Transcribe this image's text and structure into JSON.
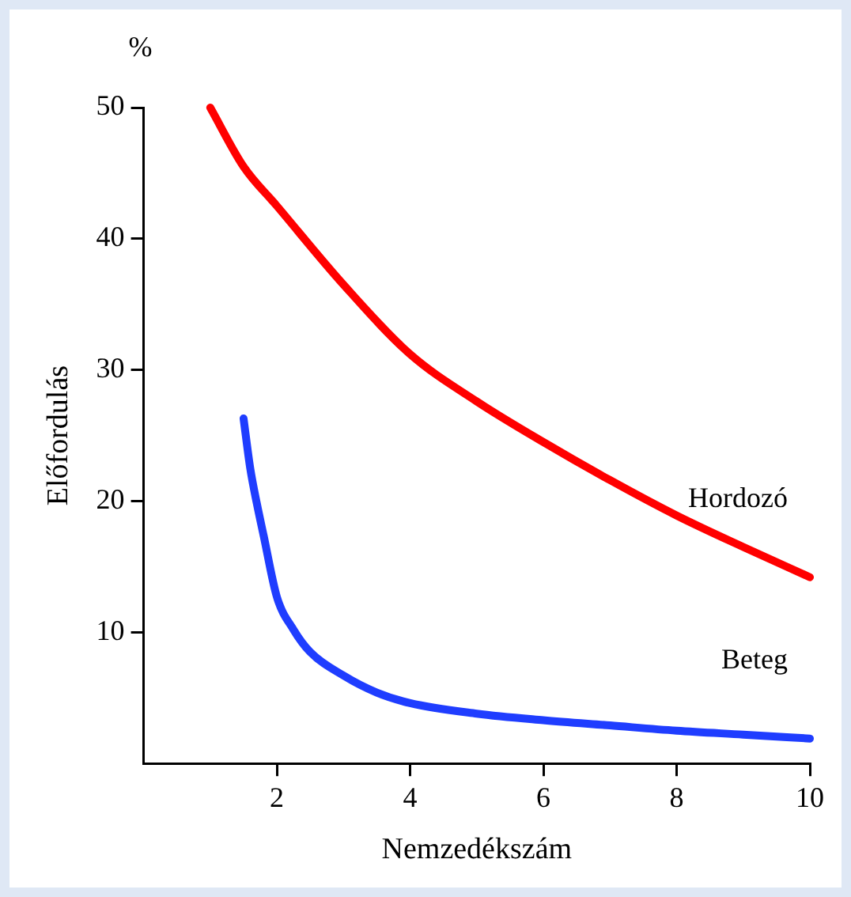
{
  "chart_data": {
    "type": "line",
    "xlabel": "Nemzedékszám",
    "ylabel": "Előfordulás",
    "annotations": [
      "%"
    ],
    "xlim": [
      0,
      10
    ],
    "xticks": [
      2,
      4,
      6,
      8,
      10
    ],
    "ylim": [
      0,
      50
    ],
    "yticks": [
      10,
      20,
      30,
      40,
      50
    ],
    "grid": false,
    "legend": false,
    "marker": "none",
    "line_style": "solid",
    "series": [
      {
        "name": "Hordozó",
        "color": "#ff0000",
        "x": [
          1,
          1.5,
          2,
          3,
          4,
          5,
          6,
          7,
          8,
          9,
          10
        ],
        "values": [
          50,
          45.5,
          42.5,
          36.5,
          31.2,
          27.6,
          24.5,
          21.6,
          18.9,
          16.5,
          14.2
        ]
      },
      {
        "name": "Beteg",
        "color": "#1f3dff",
        "x": [
          1.5,
          1.6,
          1.7,
          1.8,
          2,
          2.25,
          2.5,
          3,
          3.5,
          4,
          5,
          6,
          7,
          8,
          9,
          10
        ],
        "values": [
          26.3,
          22.5,
          19.8,
          17.4,
          12.7,
          10.2,
          8.5,
          6.7,
          5.4,
          4.6,
          3.8,
          3.3,
          2.9,
          2.5,
          2.2,
          1.9
        ]
      }
    ]
  }
}
